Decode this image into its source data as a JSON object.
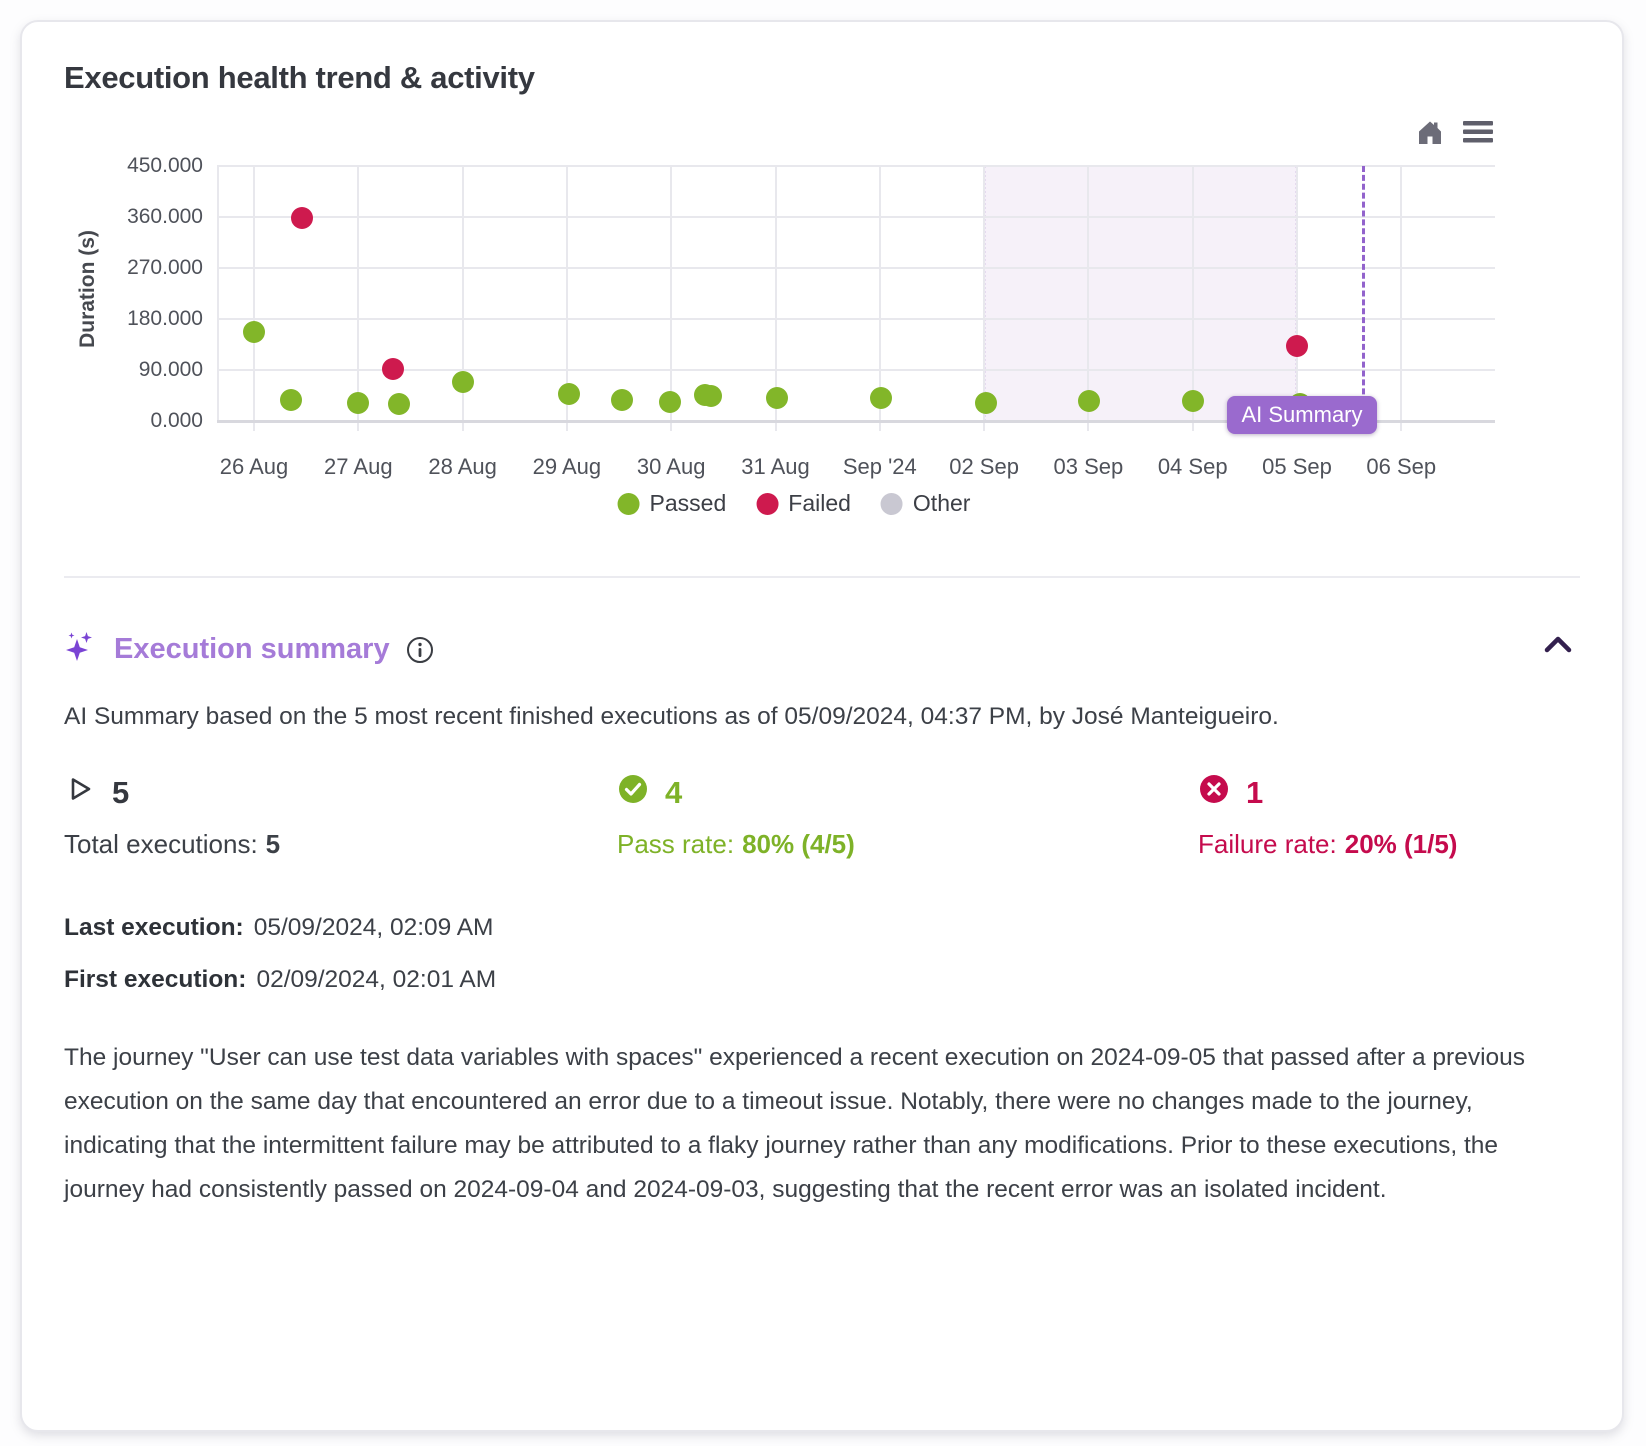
{
  "card": {
    "title": "Execution health trend & activity"
  },
  "colors": {
    "passed": "#82b629",
    "failed": "#ce1a4e",
    "other": "#c9c8d2",
    "accent_purple": "#9a6ace",
    "heading_purple": "#a57bd8",
    "pass_text": "#7eb228",
    "fail_text": "#c50b4d",
    "highlight_region": "#f6f1f9",
    "cursor_line": "#9263cc"
  },
  "icons": {
    "home": "home-icon",
    "menu": "hamburger-menu-icon",
    "sparkle": "sparkle-icon",
    "info": "info-icon",
    "chevron_up": "chevron-up-icon",
    "play": "play-icon",
    "check": "check-circle-icon",
    "cross": "cross-circle-icon"
  },
  "chart_data": {
    "type": "scatter",
    "title": "Execution health trend & activity",
    "xlabel": "",
    "ylabel": "Duration (s)",
    "ylim": [
      0,
      450
    ],
    "grid": true,
    "legend_position": "bottom-center",
    "y_ticks": [
      {
        "value": 0,
        "label": "0.000"
      },
      {
        "value": 90,
        "label": "90.000"
      },
      {
        "value": 180,
        "label": "180.000"
      },
      {
        "value": 270,
        "label": "270.000"
      },
      {
        "value": 360,
        "label": "360.000"
      },
      {
        "value": 450,
        "label": "450.000"
      }
    ],
    "x_ticks": [
      "26 Aug",
      "27 Aug",
      "28 Aug",
      "29 Aug",
      "30 Aug",
      "31 Aug",
      "Sep '24",
      "02 Sep",
      "03 Sep",
      "04 Sep",
      "05 Sep",
      "06 Sep"
    ],
    "legend": [
      {
        "label": "Passed",
        "color": "#82b629"
      },
      {
        "label": "Failed",
        "color": "#ce1a4e"
      },
      {
        "label": "Other",
        "color": "#c9c8d2"
      }
    ],
    "series": [
      {
        "name": "Passed",
        "color": "#82b629",
        "points": [
          {
            "day": 0.0,
            "duration": 157
          },
          {
            "day": 0.35,
            "duration": 37
          },
          {
            "day": 1.0,
            "duration": 32
          },
          {
            "day": 1.39,
            "duration": 30
          },
          {
            "day": 2.0,
            "duration": 69
          },
          {
            "day": 3.02,
            "duration": 48
          },
          {
            "day": 3.53,
            "duration": 37
          },
          {
            "day": 3.99,
            "duration": 34
          },
          {
            "day": 4.32,
            "duration": 46
          },
          {
            "day": 4.38,
            "duration": 44
          },
          {
            "day": 5.01,
            "duration": 41
          },
          {
            "day": 6.01,
            "duration": 41
          },
          {
            "day": 7.02,
            "duration": 32
          },
          {
            "day": 8.01,
            "duration": 35
          },
          {
            "day": 9.0,
            "duration": 35
          },
          {
            "day": 10.03,
            "duration": 30
          }
        ]
      },
      {
        "name": "Failed",
        "color": "#ce1a4e",
        "points": [
          {
            "day": 0.46,
            "duration": 358
          },
          {
            "day": 1.33,
            "duration": 92
          },
          {
            "day": 10.0,
            "duration": 132
          }
        ]
      }
    ],
    "highlight_region": {
      "from_day": 7,
      "to_day": 10
    },
    "cursor_line_day": 10.62,
    "tooltip": {
      "label": "AI Summary"
    }
  },
  "summary": {
    "heading": "Execution summary",
    "intro": "AI Summary based on the 5 most recent finished executions as of 05/09/2024, 04:37 PM, by José Manteigueiro.",
    "stats": {
      "total": {
        "value": "5",
        "label": "Total executions:",
        "count": "5"
      },
      "pass": {
        "value": "4",
        "label": "Pass rate:",
        "rate": "80% (4/5)"
      },
      "fail": {
        "value": "1",
        "label": "Failure rate:",
        "rate": "20% (1/5)"
      }
    },
    "last_execution_label": "Last execution:",
    "last_execution": "05/09/2024, 02:09 AM",
    "first_execution_label": "First execution:",
    "first_execution": "02/09/2024, 02:01 AM",
    "body": "The journey \"User can use test data variables with spaces\" experienced a recent execution on 2024-09-05 that passed after a previous execution on the same day that encountered an error due to a timeout issue. Notably, there were no changes made to the journey, indicating that the intermittent failure may be attributed to a flaky journey rather than any modifications. Prior to these executions, the journey had consistently passed on 2024-09-04 and 2024-09-03, suggesting that the recent error was an isolated incident."
  }
}
